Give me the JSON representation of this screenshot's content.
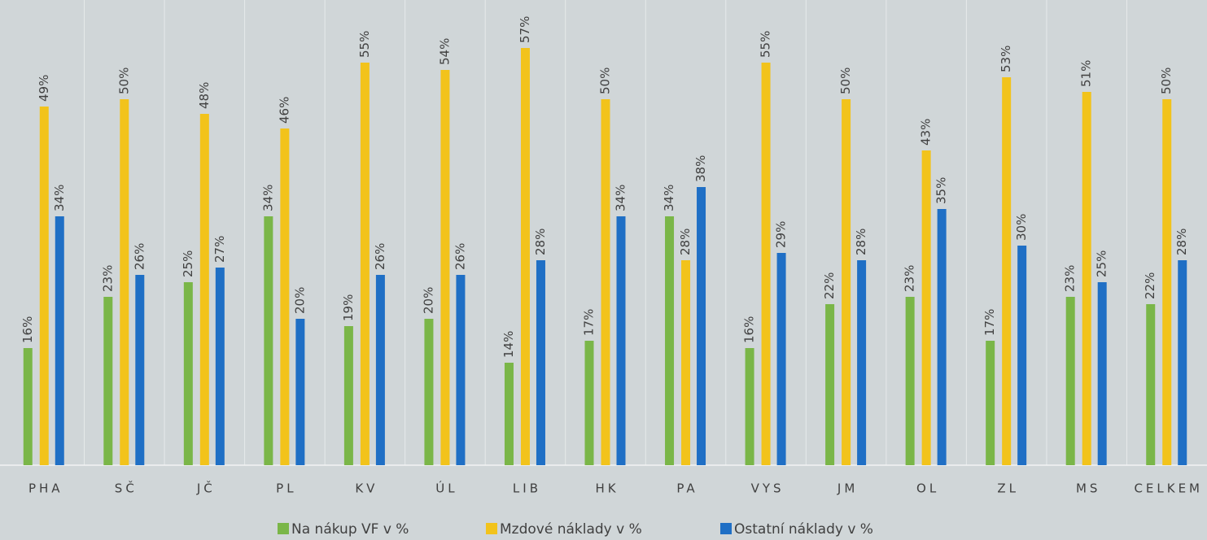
{
  "chart_data": {
    "type": "bar",
    "categories": [
      "PHA",
      "SČ",
      "JČ",
      "PL",
      "KV",
      "ÚL",
      "LIB",
      "HK",
      "PA",
      "VYS",
      "JM",
      "OL",
      "ZL",
      "MS",
      "CELKEM"
    ],
    "ylim": [
      0,
      63
    ],
    "series": [
      {
        "name": "Na nákup VF v %",
        "color": "#7ab648",
        "values": [
          16,
          23,
          25,
          34,
          19,
          20,
          14,
          17,
          34,
          16,
          22,
          23,
          17,
          23,
          22
        ],
        "value_labels": [
          "16%",
          "23%",
          "25%",
          "34%",
          "19%",
          "20%",
          "14%",
          "17%",
          "34%",
          "16%",
          "22%",
          "23%",
          "17%",
          "23%",
          "22%"
        ]
      },
      {
        "name": "Mzdové náklady v %",
        "color": "#f2c31b",
        "values": [
          49,
          50,
          48,
          46,
          55,
          54,
          57,
          50,
          28,
          55,
          50,
          43,
          53,
          51,
          50
        ],
        "value_labels": [
          "49%",
          "50%",
          "48%",
          "46%",
          "55%",
          "54%",
          "57%",
          "50%",
          "28%",
          "55%",
          "50%",
          "43%",
          "53%",
          "51%",
          "50%"
        ]
      },
      {
        "name": "Ostatní náklady v %",
        "color": "#1f6fc5",
        "values": [
          34,
          26,
          27,
          20,
          26,
          26,
          28,
          34,
          38,
          29,
          28,
          35,
          30,
          25,
          28
        ],
        "value_labels": [
          "34%",
          "26%",
          "27%",
          "20%",
          "26%",
          "26%",
          "28%",
          "34%",
          "38%",
          "29%",
          "28%",
          "35%",
          "30%",
          "25%",
          "28%"
        ]
      }
    ]
  }
}
